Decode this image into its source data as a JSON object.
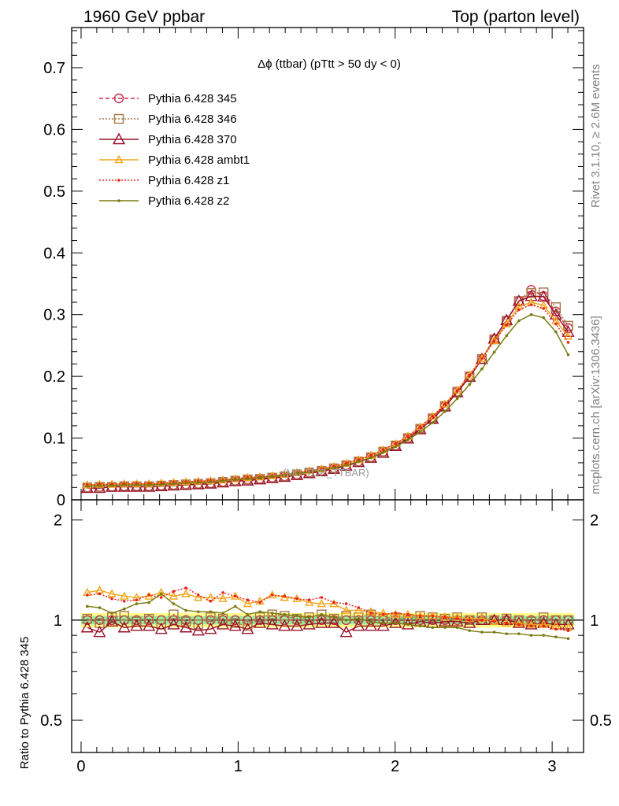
{
  "header": {
    "left_title": "1960 GeV ppbar",
    "right_title": "Top (parton level)"
  },
  "side_labels": {
    "rivet": "Rivet 3.1.10, ≥ 2.6M events",
    "mcplots": "mcplots.cern.ch [arXiv:1306.3436]"
  },
  "watermark": "(MC-TOP_TTBAR)",
  "colors": {
    "p345": "#cc2a4a",
    "p346": "#a8784a",
    "p370": "#9a1028",
    "ambt1": "#f2a51a",
    "z1": "#e8221a",
    "z2": "#7a7a10",
    "band_yellow": "#ffff88",
    "band_green": "#99ee99"
  },
  "chart_data": [
    {
      "type": "line",
      "panel": "main",
      "title": "Δϕ (ttbar) (pTtt > 50 dy < 0)",
      "xlabel": "",
      "ylabel": "",
      "xlim": [
        -0.06,
        3.2
      ],
      "ylim": [
        0,
        0.765
      ],
      "yticks": [
        0,
        0.1,
        0.2,
        0.3,
        0.4,
        0.5,
        0.6,
        0.7
      ],
      "ytick_labels": [
        "0",
        "0.1",
        "0.2",
        "0.3",
        "0.4",
        "0.5",
        "0.6",
        "0.7"
      ],
      "x": [
        0.0393,
        0.1178,
        0.1963,
        0.2749,
        0.3534,
        0.432,
        0.5105,
        0.589,
        0.6676,
        0.7461,
        0.8247,
        0.9032,
        0.9817,
        1.0603,
        1.1388,
        1.2174,
        1.2959,
        1.3744,
        1.453,
        1.5315,
        1.6101,
        1.6886,
        1.7671,
        1.8457,
        1.9242,
        2.0028,
        2.0813,
        2.1598,
        2.2384,
        2.3169,
        2.3955,
        2.474,
        2.5525,
        2.6311,
        2.7096,
        2.7882,
        2.8667,
        2.9452,
        3.0238,
        3.1023
      ],
      "series": [
        {
          "name": "Pythia 6.428 345",
          "color_key": "p345",
          "marker": "circle",
          "dash": "5,3",
          "values": [
            0.02,
            0.021,
            0.021,
            0.022,
            0.022,
            0.022,
            0.023,
            0.024,
            0.025,
            0.026,
            0.027,
            0.029,
            0.031,
            0.033,
            0.034,
            0.036,
            0.038,
            0.041,
            0.044,
            0.047,
            0.051,
            0.056,
            0.062,
            0.069,
            0.078,
            0.088,
            0.1,
            0.115,
            0.132,
            0.152,
            0.175,
            0.2,
            0.228,
            0.26,
            0.29,
            0.322,
            0.34,
            0.33,
            0.305,
            0.278
          ]
        },
        {
          "name": "Pythia 6.428 346",
          "color_key": "p346",
          "marker": "square",
          "dash": "2,2",
          "values": [
            0.02,
            0.021,
            0.021,
            0.022,
            0.022,
            0.022,
            0.023,
            0.024,
            0.025,
            0.026,
            0.027,
            0.029,
            0.031,
            0.033,
            0.034,
            0.036,
            0.038,
            0.041,
            0.044,
            0.047,
            0.051,
            0.056,
            0.062,
            0.069,
            0.078,
            0.088,
            0.1,
            0.115,
            0.132,
            0.152,
            0.175,
            0.2,
            0.228,
            0.26,
            0.29,
            0.322,
            0.335,
            0.336,
            0.312,
            0.282
          ]
        },
        {
          "name": "Pythia 6.428 370",
          "color_key": "p370",
          "marker": "triangle",
          "dash": "",
          "values": [
            0.019,
            0.019,
            0.021,
            0.021,
            0.021,
            0.021,
            0.022,
            0.023,
            0.024,
            0.025,
            0.026,
            0.028,
            0.03,
            0.031,
            0.033,
            0.035,
            0.037,
            0.04,
            0.043,
            0.046,
            0.05,
            0.055,
            0.061,
            0.068,
            0.076,
            0.087,
            0.099,
            0.114,
            0.131,
            0.151,
            0.174,
            0.199,
            0.228,
            0.261,
            0.291,
            0.322,
            0.33,
            0.329,
            0.3,
            0.272
          ]
        },
        {
          "name": "Pythia 6.428 ambt1",
          "color_key": "ambt1",
          "marker": "triangle-open-small",
          "dash": "",
          "values": [
            0.024,
            0.025,
            0.025,
            0.026,
            0.026,
            0.026,
            0.027,
            0.028,
            0.029,
            0.03,
            0.031,
            0.032,
            0.034,
            0.036,
            0.037,
            0.039,
            0.041,
            0.044,
            0.047,
            0.05,
            0.054,
            0.059,
            0.065,
            0.072,
            0.081,
            0.091,
            0.103,
            0.118,
            0.135,
            0.155,
            0.177,
            0.202,
            0.229,
            0.258,
            0.285,
            0.313,
            0.32,
            0.315,
            0.29,
            0.265
          ]
        },
        {
          "name": "Pythia 6.428 z1",
          "color_key": "z1",
          "marker": "dot",
          "dash": "2,2",
          "values": [
            0.024,
            0.025,
            0.025,
            0.026,
            0.026,
            0.026,
            0.027,
            0.028,
            0.029,
            0.03,
            0.031,
            0.032,
            0.034,
            0.036,
            0.037,
            0.039,
            0.041,
            0.044,
            0.047,
            0.05,
            0.054,
            0.059,
            0.065,
            0.072,
            0.081,
            0.091,
            0.103,
            0.118,
            0.135,
            0.155,
            0.177,
            0.202,
            0.229,
            0.257,
            0.283,
            0.308,
            0.316,
            0.31,
            0.285,
            0.255
          ]
        },
        {
          "name": "Pythia 6.428 z2",
          "color_key": "z2",
          "marker": "dot",
          "dash": "",
          "values": [
            0.022,
            0.023,
            0.023,
            0.024,
            0.024,
            0.024,
            0.025,
            0.026,
            0.027,
            0.028,
            0.029,
            0.031,
            0.033,
            0.034,
            0.036,
            0.038,
            0.04,
            0.043,
            0.045,
            0.048,
            0.052,
            0.056,
            0.062,
            0.068,
            0.077,
            0.086,
            0.097,
            0.11,
            0.125,
            0.143,
            0.164,
            0.187,
            0.212,
            0.239,
            0.266,
            0.29,
            0.3,
            0.295,
            0.272,
            0.235
          ]
        }
      ]
    },
    {
      "type": "line",
      "panel": "ratio",
      "title": "",
      "ylabel": "Ratio to Pythia 6.428 345",
      "xlim": [
        -0.06,
        3.2
      ],
      "ylim": [
        0.4,
        2.3
      ],
      "log_y": true,
      "yticks": [
        0.5,
        1,
        2
      ],
      "ytick_labels": [
        "0.5",
        "1",
        "2"
      ],
      "xticks": [
        0,
        1,
        2,
        3
      ],
      "xtick_labels": [
        "0",
        "1",
        "2",
        "3"
      ],
      "x": [
        0.0393,
        0.1178,
        0.1963,
        0.2749,
        0.3534,
        0.432,
        0.5105,
        0.589,
        0.6676,
        0.7461,
        0.8247,
        0.9032,
        0.9817,
        1.0603,
        1.1388,
        1.2174,
        1.2959,
        1.3744,
        1.453,
        1.5315,
        1.6101,
        1.6886,
        1.7671,
        1.8457,
        1.9242,
        2.0028,
        2.0813,
        2.1598,
        2.2384,
        2.3169,
        2.3955,
        2.474,
        2.5525,
        2.6311,
        2.7096,
        2.7882,
        2.8667,
        2.9452,
        3.0238,
        3.1023
      ],
      "band": {
        "inner": [
          0.97,
          1.03
        ],
        "outer": [
          0.95,
          1.05
        ]
      },
      "series": [
        {
          "name": "Pythia 6.428 345",
          "color_key": "p345",
          "marker": "circle",
          "values": [
            1.0,
            1.0,
            1.0,
            1.0,
            1.0,
            1.0,
            1.0,
            1.0,
            1.0,
            1.0,
            1.0,
            1.0,
            1.0,
            1.0,
            1.0,
            1.0,
            1.0,
            1.0,
            1.0,
            1.0,
            1.0,
            1.0,
            1.0,
            1.0,
            1.0,
            1.0,
            1.0,
            1.0,
            1.0,
            1.0,
            1.0,
            1.0,
            1.0,
            1.0,
            1.0,
            1.0,
            1.0,
            1.0,
            1.0,
            1.0
          ]
        },
        {
          "name": "Pythia 6.428 346",
          "color_key": "p346",
          "marker": "square",
          "values": [
            1.01,
            0.98,
            1.02,
            1.03,
            0.99,
            1.01,
            0.97,
            1.04,
            0.99,
            0.97,
            1.02,
            1.01,
            0.98,
            0.96,
            1.02,
            1.04,
            1.03,
            1.01,
            1.02,
            1.04,
            1.01,
            1.03,
            1.02,
            1.04,
            1.01,
            1.02,
            1.01,
            1.03,
            1.02,
            1.01,
            1.02,
            1.0,
            1.02,
            1.0,
            1.01,
            1.0,
            0.99,
            1.02,
            1.0,
            1.0
          ]
        },
        {
          "name": "Pythia 6.428 370",
          "color_key": "p370",
          "marker": "triangle",
          "values": [
            0.95,
            0.92,
            0.99,
            0.95,
            0.96,
            0.96,
            0.94,
            0.97,
            0.95,
            0.93,
            0.94,
            0.97,
            0.96,
            0.94,
            0.98,
            0.97,
            0.96,
            0.96,
            0.97,
            0.98,
            0.98,
            0.92,
            0.96,
            0.96,
            0.96,
            0.98,
            0.97,
            0.99,
            0.98,
            0.99,
            0.99,
            0.98,
            1.0,
            1.0,
            1.0,
            0.98,
            0.97,
            0.98,
            0.97,
            0.97
          ]
        },
        {
          "name": "Pythia 6.428 ambt1",
          "color_key": "ambt1",
          "marker": "triangle-open-small",
          "values": [
            1.21,
            1.23,
            1.2,
            1.18,
            1.17,
            1.18,
            1.21,
            1.18,
            1.2,
            1.17,
            1.17,
            1.16,
            1.18,
            1.12,
            1.14,
            1.19,
            1.17,
            1.16,
            1.13,
            1.12,
            1.12,
            1.07,
            1.07,
            1.06,
            1.05,
            1.04,
            1.04,
            1.03,
            1.03,
            1.02,
            1.02,
            1.01,
            1.01,
            0.99,
            0.98,
            0.98,
            0.97,
            0.97,
            0.96,
            0.95
          ]
        },
        {
          "name": "Pythia 6.428 z1",
          "color_key": "z1",
          "marker": "dot",
          "values": [
            1.19,
            1.2,
            1.16,
            1.14,
            1.15,
            1.19,
            1.17,
            1.22,
            1.25,
            1.19,
            1.14,
            1.21,
            1.18,
            1.15,
            1.13,
            1.19,
            1.18,
            1.16,
            1.15,
            1.17,
            1.13,
            1.12,
            1.09,
            1.05,
            1.04,
            1.05,
            1.04,
            1.03,
            1.03,
            1.02,
            1.01,
            1.0,
            1.0,
            0.99,
            0.98,
            0.97,
            0.96,
            0.96,
            0.94,
            0.93
          ]
        },
        {
          "name": "Pythia 6.428 z2",
          "color_key": "z2",
          "marker": "dot",
          "values": [
            1.1,
            1.09,
            1.05,
            1.08,
            1.12,
            1.13,
            1.2,
            1.12,
            1.07,
            1.06,
            1.06,
            1.05,
            1.1,
            1.04,
            1.06,
            1.05,
            1.04,
            1.03,
            1.02,
            1.04,
            1.02,
            1.0,
            1.01,
            0.99,
            0.98,
            0.98,
            0.97,
            0.96,
            0.95,
            0.95,
            0.95,
            0.93,
            0.92,
            0.92,
            0.91,
            0.91,
            0.9,
            0.9,
            0.89,
            0.88
          ]
        }
      ]
    }
  ]
}
